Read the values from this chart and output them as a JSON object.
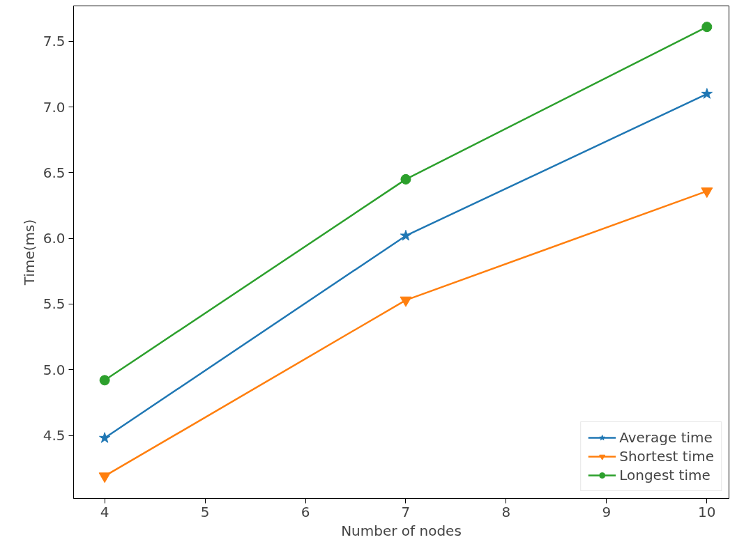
{
  "chart_data": {
    "type": "line",
    "xlabel": "Number of nodes",
    "ylabel": "Time(ms)",
    "x": [
      4,
      7,
      10
    ],
    "series": [
      {
        "name": "Average time",
        "color": "#1f77b4",
        "marker": "star",
        "values": [
          4.48,
          6.02,
          7.1
        ]
      },
      {
        "name": "Shortest time",
        "color": "#ff7f0e",
        "marker": "triangle",
        "values": [
          4.19,
          5.53,
          6.36
        ]
      },
      {
        "name": "Longest time",
        "color": "#2ca02c",
        "marker": "circle",
        "values": [
          4.92,
          6.45,
          7.61
        ]
      }
    ],
    "xlim": [
      3.69,
      10.22
    ],
    "ylim": [
      4.02,
      7.77
    ],
    "xticks": [
      4,
      5,
      6,
      7,
      8,
      9,
      10
    ],
    "yticks": [
      {
        "value": 4.5,
        "label": "4.5"
      },
      {
        "value": 5.0,
        "label": "5.0"
      },
      {
        "value": 5.5,
        "label": "5.5"
      },
      {
        "value": 6.0,
        "label": "6.0"
      },
      {
        "value": 6.5,
        "label": "6.5"
      },
      {
        "value": 7.0,
        "label": "7.0"
      },
      {
        "value": 7.5,
        "label": "7.5"
      }
    ],
    "grid": false,
    "legend": "bottom right",
    "line_style": "solid"
  }
}
